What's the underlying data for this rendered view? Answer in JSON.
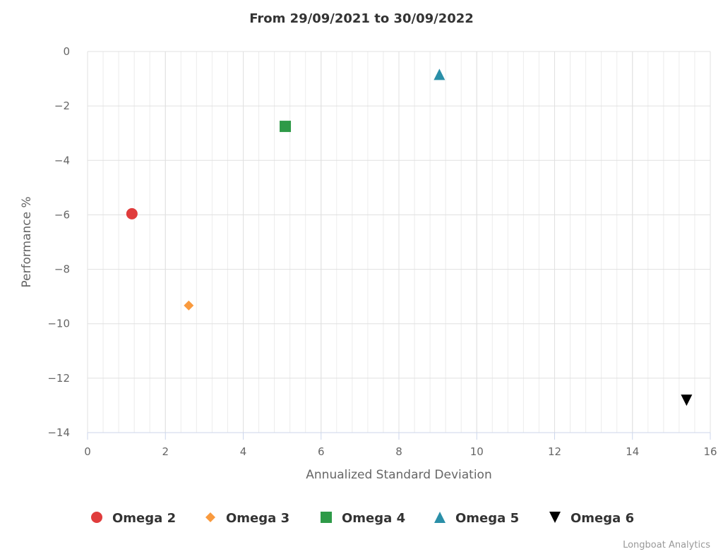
{
  "chart_data": {
    "type": "scatter",
    "title": "From 29/09/2021 to 30/09/2022",
    "xlabel": "Annualized Standard Deviation",
    "ylabel": "Performance %",
    "xlim": [
      0,
      16
    ],
    "ylim": [
      -14,
      0
    ],
    "xticks": [
      "0",
      "2",
      "4",
      "6",
      "8",
      "10",
      "12",
      "14",
      "16"
    ],
    "yticks": [
      "0",
      "−2",
      "−4",
      "−6",
      "−8",
      "−10",
      "−12",
      "−14"
    ],
    "xtick_values": [
      0,
      2,
      4,
      6,
      8,
      10,
      12,
      14,
      16
    ],
    "ytick_values": [
      0,
      -2,
      -4,
      -6,
      -8,
      -10,
      -12,
      -14
    ],
    "grid": true,
    "legend_position": "bottom-center",
    "series": [
      {
        "name": "Omega 2",
        "marker": "circle",
        "color": "#e03c3c",
        "x": 1.14,
        "y": -5.96
      },
      {
        "name": "Omega 3",
        "marker": "diamond",
        "color": "#f99a3e",
        "x": 2.6,
        "y": -9.33
      },
      {
        "name": "Omega 4",
        "marker": "square",
        "color": "#2e9a48",
        "x": 5.08,
        "y": -2.75
      },
      {
        "name": "Omega 5",
        "marker": "triangle",
        "color": "#2a8fa8",
        "x": 9.04,
        "y": -0.84
      },
      {
        "name": "Omega 6",
        "marker": "triangle-down",
        "color": "#000000",
        "x": 15.39,
        "y": -12.81
      }
    ],
    "credit": "Longboat Analytics"
  }
}
